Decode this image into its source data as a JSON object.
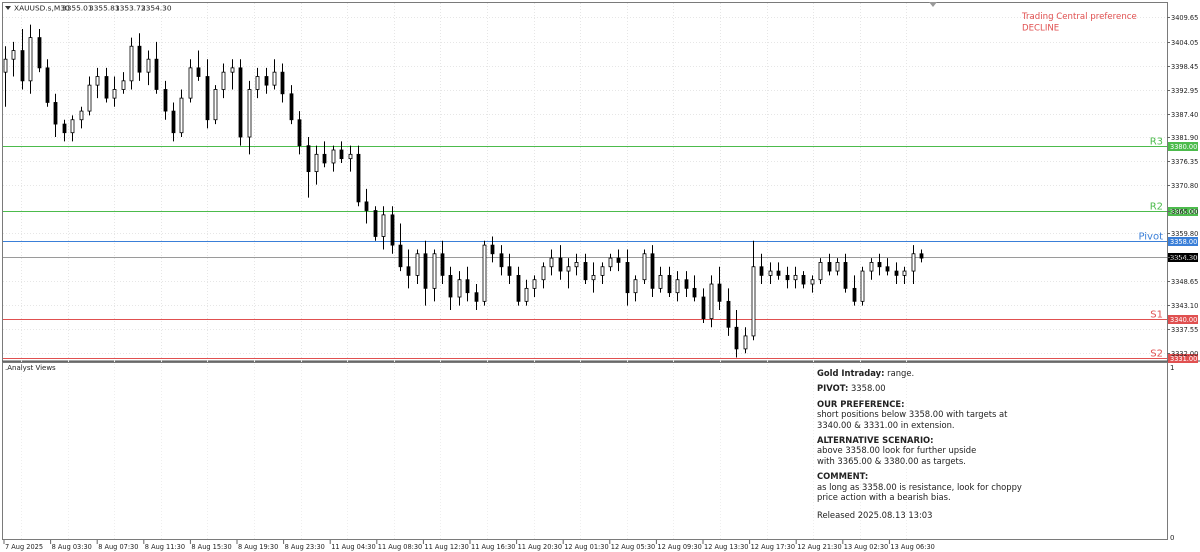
{
  "header": {
    "symbol": "XAUUSD.s,M30",
    "open": "3355.01",
    "high": "3355.81",
    "low": "3353.72",
    "close": "3354.30"
  },
  "preference": {
    "line1": "Trading Central preference",
    "line2": "DECLINE",
    "color": "#e05050"
  },
  "subwindow": {
    "title": ".Analyst Views",
    "scale_top": "1",
    "scale_bottom": "0"
  },
  "analysis": {
    "title_bold": "Gold Intraday:",
    "title_rest": " range.",
    "pivot_label": "PIVOT:",
    "pivot_value": " 3358.00",
    "pref_heading": "OUR PREFERENCE:",
    "pref_text_1": "short positions below 3358.00 with targets at",
    "pref_text_2": "3340.00 & 3331.00 in extension.",
    "alt_heading": "ALTERNATIVE SCENARIO:",
    "alt_text_1": "above 3358.00 look for further upside",
    "alt_text_2": "with 3365.00 & 3380.00 as targets.",
    "comment_heading": "COMMENT:",
    "comment_text_1": "as long as 3358.00 is resistance, look for choppy",
    "comment_text_2": "price action with a bearish bias.",
    "released": "Released 2025.08.13 13:03"
  },
  "chart_data": {
    "type": "candlestick",
    "symbol": "XAUUSD.s",
    "timeframe": "M30",
    "ylim": [
      3330.2,
      3413.0
    ],
    "y_ticks": [
      "3409.65",
      "3404.05",
      "3398.45",
      "3392.95",
      "3387.40",
      "3381.90",
      "3376.35",
      "3370.80",
      "3365.00",
      "3359.80",
      "3354.30",
      "3348.65",
      "3343.10",
      "3337.55",
      "3332.00"
    ],
    "x_ticks": [
      "7 Aug 2025",
      "8 Aug 03:30",
      "8 Aug 07:30",
      "8 Aug 11:30",
      "8 Aug 15:30",
      "8 Aug 19:30",
      "8 Aug 23:30",
      "11 Aug 04:30",
      "11 Aug 08:30",
      "11 Aug 12:30",
      "11 Aug 16:30",
      "11 Aug 20:30",
      "12 Aug 01:30",
      "12 Aug 05:30",
      "12 Aug 09:30",
      "12 Aug 13:30",
      "12 Aug 17:30",
      "12 Aug 21:30",
      "13 Aug 02:30",
      "13 Aug 06:30"
    ],
    "levels": [
      {
        "label": "R3",
        "value": 3380.0,
        "tag": "3380.00",
        "color": "#4cbb4c"
      },
      {
        "label": "R2",
        "value": 3365.0,
        "tag": "3365.00",
        "color": "#4cbb4c"
      },
      {
        "label": "Pivot",
        "value": 3358.0,
        "tag": "3358.00",
        "color": "#3a7fd8"
      },
      {
        "label": "S1",
        "value": 3340.0,
        "tag": "3340.00",
        "color": "#e05050"
      },
      {
        "label": "S2",
        "value": 3331.0,
        "tag": "3331.00",
        "color": "#e05050"
      }
    ],
    "current_price": {
      "value": 3354.3,
      "tag": "3354.30"
    },
    "candles": [
      [
        3397,
        3403,
        3389,
        3400
      ],
      [
        3400,
        3404,
        3396,
        3402
      ],
      [
        3402,
        3407,
        3393,
        3395
      ],
      [
        3395,
        3408,
        3392,
        3405
      ],
      [
        3405,
        3407,
        3397,
        3398
      ],
      [
        3398,
        3400,
        3389,
        3390
      ],
      [
        3390,
        3392,
        3382,
        3385
      ],
      [
        3385,
        3386,
        3381,
        3383
      ],
      [
        3383,
        3387,
        3381,
        3386
      ],
      [
        3386,
        3389,
        3384,
        3388
      ],
      [
        3388,
        3396,
        3387,
        3394
      ],
      [
        3394,
        3398,
        3391,
        3396
      ],
      [
        3396,
        3398,
        3390,
        3391
      ],
      [
        3391,
        3396,
        3389,
        3393
      ],
      [
        3393,
        3397,
        3392,
        3395
      ],
      [
        3395,
        3405,
        3393,
        3403
      ],
      [
        3403,
        3406,
        3395,
        3397
      ],
      [
        3397,
        3402,
        3394,
        3400
      ],
      [
        3400,
        3404,
        3392,
        3393
      ],
      [
        3393,
        3395,
        3386,
        3388
      ],
      [
        3388,
        3390,
        3381,
        3383
      ],
      [
        3383,
        3393,
        3382,
        3391
      ],
      [
        3391,
        3400,
        3390,
        3398
      ],
      [
        3398,
        3402,
        3395,
        3396
      ],
      [
        3396,
        3400,
        3384,
        3386
      ],
      [
        3386,
        3394,
        3385,
        3393
      ],
      [
        3393,
        3399,
        3391,
        3397
      ],
      [
        3397,
        3400,
        3393,
        3398
      ],
      [
        3398,
        3400,
        3380,
        3382
      ],
      [
        3382,
        3395,
        3378,
        3393
      ],
      [
        3393,
        3398,
        3391,
        3396
      ],
      [
        3396,
        3398,
        3392,
        3394
      ],
      [
        3394,
        3400,
        3393,
        3397
      ],
      [
        3397,
        3399,
        3390,
        3392
      ],
      [
        3392,
        3394,
        3385,
        3386
      ],
      [
        3386,
        3388,
        3378,
        3380
      ],
      [
        3380,
        3382,
        3368,
        3374
      ],
      [
        3374,
        3380,
        3371,
        3378
      ],
      [
        3378,
        3381,
        3375,
        3376
      ],
      [
        3376,
        3380,
        3374,
        3379
      ],
      [
        3379,
        3381,
        3376,
        3377
      ],
      [
        3377,
        3380,
        3374,
        3378
      ],
      [
        3378,
        3380,
        3366,
        3367
      ],
      [
        3367,
        3370,
        3362,
        3365
      ],
      [
        3365,
        3366,
        3358,
        3359
      ],
      [
        3359,
        3366,
        3356,
        3364
      ],
      [
        3364,
        3366,
        3355,
        3357
      ],
      [
        3357,
        3362,
        3351,
        3352
      ],
      [
        3352,
        3356,
        3347,
        3350
      ],
      [
        3350,
        3356,
        3348,
        3355
      ],
      [
        3355,
        3358,
        3343,
        3347
      ],
      [
        3347,
        3356,
        3344,
        3355
      ],
      [
        3355,
        3358,
        3348,
        3350
      ],
      [
        3350,
        3352,
        3342,
        3345
      ],
      [
        3345,
        3351,
        3343,
        3349
      ],
      [
        3349,
        3352,
        3344,
        3346
      ],
      [
        3346,
        3348,
        3342,
        3344
      ],
      [
        3344,
        3358,
        3343,
        3357
      ],
      [
        3357,
        3359,
        3353,
        3355
      ],
      [
        3355,
        3357,
        3350,
        3352
      ],
      [
        3352,
        3355,
        3348,
        3350
      ],
      [
        3350,
        3352,
        3343,
        3344
      ],
      [
        3344,
        3349,
        3343,
        3347
      ],
      [
        3347,
        3350,
        3345,
        3349
      ],
      [
        3349,
        3353,
        3347,
        3352
      ],
      [
        3352,
        3356,
        3350,
        3354
      ],
      [
        3354,
        3357,
        3349,
        3351
      ],
      [
        3351,
        3354,
        3347,
        3352
      ],
      [
        3352,
        3355,
        3350,
        3353
      ],
      [
        3353,
        3355,
        3348,
        3349
      ],
      [
        3349,
        3353,
        3346,
        3350
      ],
      [
        3350,
        3353,
        3348,
        3352
      ],
      [
        3352,
        3355,
        3351,
        3354
      ],
      [
        3354,
        3356,
        3351,
        3353
      ],
      [
        3353,
        3356,
        3343,
        3346
      ],
      [
        3346,
        3350,
        3344,
        3349
      ],
      [
        3349,
        3356,
        3348,
        3355
      ],
      [
        3355,
        3357,
        3345,
        3347
      ],
      [
        3347,
        3352,
        3346,
        3350
      ],
      [
        3350,
        3352,
        3345,
        3346
      ],
      [
        3346,
        3351,
        3344,
        3349
      ],
      [
        3349,
        3351,
        3345,
        3347
      ],
      [
        3347,
        3350,
        3344,
        3345
      ],
      [
        3345,
        3347,
        3339,
        3340
      ],
      [
        3340,
        3350,
        3338,
        3348
      ],
      [
        3348,
        3352,
        3342,
        3344
      ],
      [
        3344,
        3347,
        3336,
        3338
      ],
      [
        3338,
        3342,
        3331,
        3333
      ],
      [
        3333,
        3338,
        3332,
        3336
      ],
      [
        3336,
        3358,
        3335,
        3352
      ],
      [
        3352,
        3355,
        3348,
        3350
      ],
      [
        3350,
        3353,
        3348,
        3351
      ],
      [
        3351,
        3353,
        3349,
        3350
      ],
      [
        3350,
        3352,
        3347,
        3349
      ],
      [
        3349,
        3352,
        3347,
        3350
      ],
      [
        3350,
        3351,
        3347,
        3348
      ],
      [
        3348,
        3350,
        3346,
        3349
      ],
      [
        3349,
        3354,
        3348,
        3353
      ],
      [
        3353,
        3355,
        3350,
        3351
      ],
      [
        3351,
        3354,
        3350,
        3353
      ],
      [
        3353,
        3355,
        3346,
        3347
      ],
      [
        3347,
        3350,
        3343,
        3344
      ],
      [
        3344,
        3352,
        3343,
        3351
      ],
      [
        3351,
        3354,
        3349,
        3353
      ],
      [
        3353,
        3355,
        3350,
        3352
      ],
      [
        3352,
        3354,
        3350,
        3351
      ],
      [
        3351,
        3353,
        3348,
        3350
      ],
      [
        3350,
        3352,
        3348,
        3351
      ],
      [
        3351,
        3357,
        3348,
        3355
      ],
      [
        3355,
        3356,
        3353,
        3354
      ]
    ]
  }
}
